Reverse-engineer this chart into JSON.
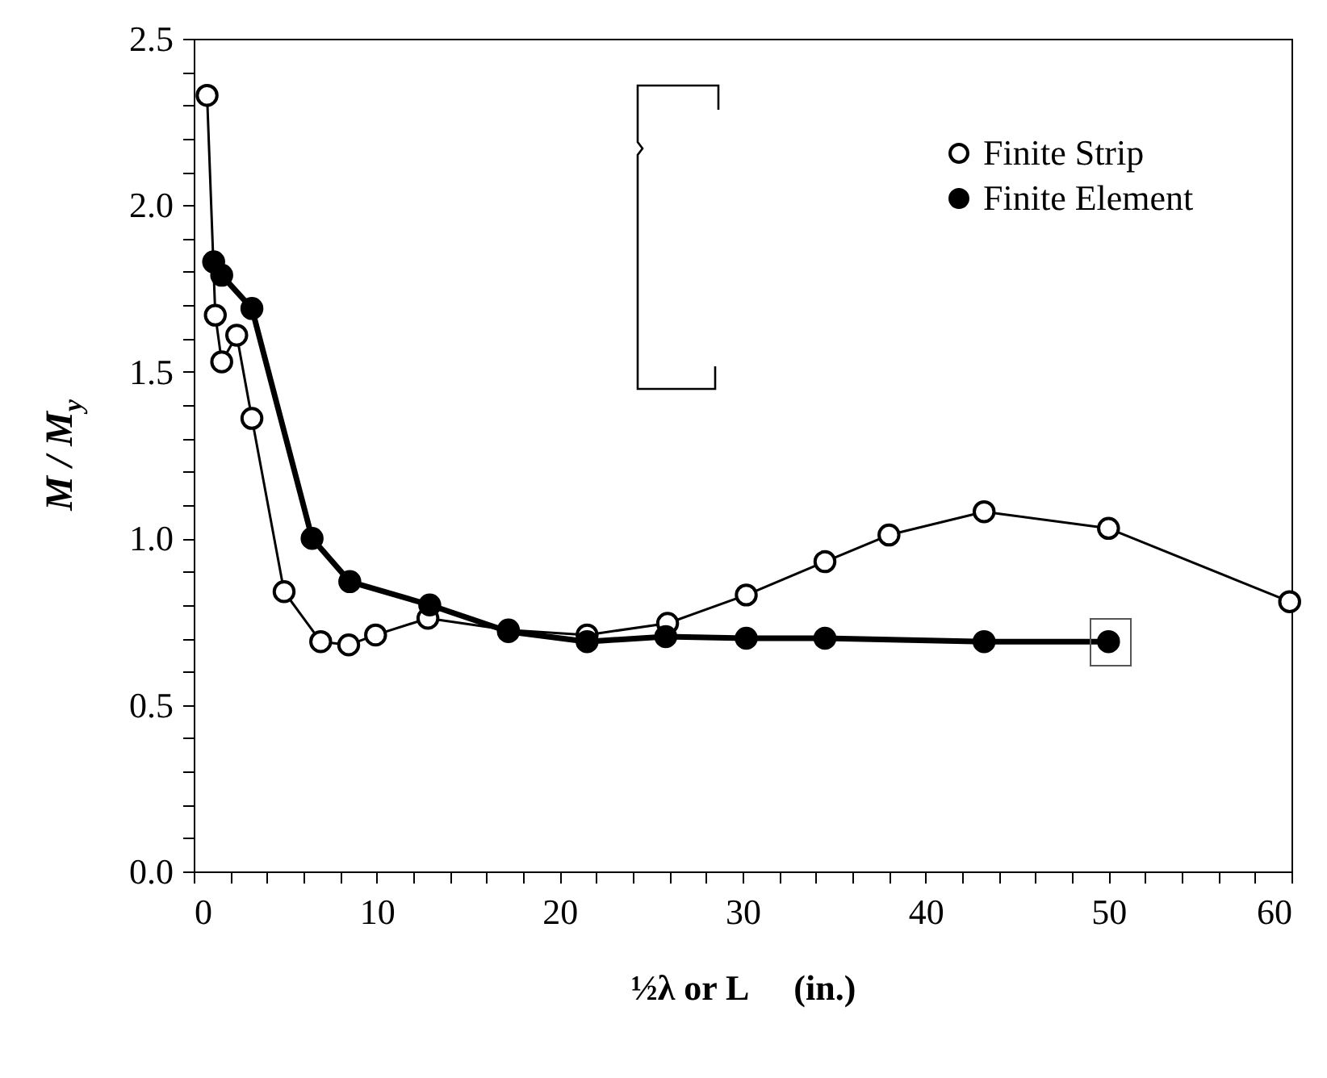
{
  "chart_data": {
    "type": "line",
    "xlabel": "½λ or L     (in.)",
    "ylabel": "M / M$_{y}$",
    "xlim": [
      0,
      60
    ],
    "ylim": [
      0,
      2.5
    ],
    "xticks": [
      0,
      {
        "value": 2,
        "label": null
      },
      {
        "value": 4,
        "label": null
      },
      {
        "value": 6,
        "label": null
      },
      {
        "value": 8,
        "label": null
      },
      10,
      {
        "value": 12,
        "label": null
      },
      {
        "value": 14,
        "label": null
      },
      {
        "value": 16,
        "label": null
      },
      {
        "value": 18,
        "label": null
      },
      20,
      {
        "value": 22,
        "label": null
      },
      {
        "value": 24,
        "label": null
      },
      {
        "value": 26,
        "label": null
      },
      {
        "value": 28,
        "label": null
      },
      30,
      {
        "value": 32,
        "label": null
      },
      {
        "value": 34,
        "label": null
      },
      {
        "value": 36,
        "label": null
      },
      {
        "value": 38,
        "label": null
      },
      40,
      {
        "value": 42,
        "label": null
      },
      {
        "value": 44,
        "label": null
      },
      {
        "value": 46,
        "label": null
      },
      {
        "value": 48,
        "label": null
      },
      50,
      {
        "value": 52,
        "label": null
      },
      {
        "value": 54,
        "label": null
      },
      {
        "value": 56,
        "label": null
      },
      {
        "value": 58,
        "label": null
      },
      60
    ],
    "yticks": [
      {
        "value": 0,
        "label": "0.0"
      },
      {
        "value": 0.1,
        "label": null
      },
      {
        "value": 0.2,
        "label": null
      },
      {
        "value": 0.3,
        "label": null
      },
      {
        "value": 0.4,
        "label": null
      },
      {
        "value": 0.5,
        "label": "0.5"
      },
      {
        "value": 0.6,
        "label": null
      },
      {
        "value": 0.7,
        "label": null
      },
      {
        "value": 0.8,
        "label": null
      },
      {
        "value": 0.9,
        "label": null
      },
      {
        "value": 1,
        "label": "1.0"
      },
      {
        "value": 1.1,
        "label": null
      },
      {
        "value": 1.2,
        "label": null
      },
      {
        "value": 1.3,
        "label": null
      },
      {
        "value": 1.4,
        "label": null
      },
      {
        "value": 1.5,
        "label": "1.5"
      },
      {
        "value": 1.6,
        "label": null
      },
      {
        "value": 1.7,
        "label": null
      },
      {
        "value": 1.8,
        "label": null
      },
      {
        "value": 1.9,
        "label": null
      },
      {
        "value": 2,
        "label": "2.0"
      },
      {
        "value": 2.1,
        "label": null
      },
      {
        "value": 2.2,
        "label": null
      },
      {
        "value": 2.3,
        "label": null
      },
      {
        "value": 2.4,
        "label": null
      },
      {
        "value": 2.5,
        "label": "2.5"
      }
    ],
    "grid": false,
    "legend": "top right",
    "marker": "circle",
    "line_style": "solid",
    "series": [
      {
        "name": "Finite Strip",
        "color": "#000000",
        "x": [
          0.73,
          1.18,
          1.53,
          2.35,
          3.18,
          4.94,
          6.94,
          8.47,
          9.94,
          12.8,
          17.2,
          21.5,
          25.9,
          30.2,
          34.5,
          38.0,
          43.2,
          50.0,
          59.9
        ],
        "values": [
          2.33,
          1.67,
          1.53,
          1.61,
          1.36,
          0.84,
          0.69,
          0.68,
          0.71,
          0.76,
          0.725,
          0.71,
          0.745,
          0.83,
          0.93,
          1.01,
          1.08,
          1.03,
          0.81
        ]
      },
      {
        "name": "Finite Element",
        "color": "#000000",
        "x": [
          1.09,
          1.53,
          3.18,
          6.47,
          8.53,
          12.9,
          17.2,
          21.5,
          25.8,
          30.2,
          34.5,
          43.2,
          50.0
        ],
        "values": [
          1.83,
          1.79,
          1.69,
          1.0,
          0.87,
          0.8,
          0.72,
          0.69,
          0.705,
          0.7,
          0.7,
          0.69,
          0.69
        ]
      }
    ]
  }
}
